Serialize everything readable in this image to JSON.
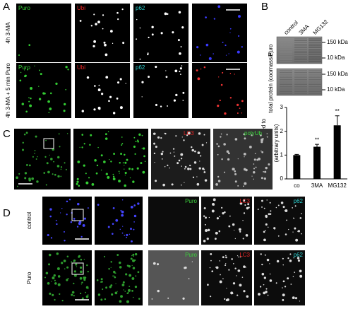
{
  "panel_labels": [
    "A",
    "B",
    "C",
    "D"
  ],
  "panel_a": {
    "rows": [
      {
        "label": "4h 3-MA",
        "channels": [
          "Puro",
          "Ubi",
          "p62"
        ]
      },
      {
        "label": "4h 3-MA + 5 min Puro",
        "channels": [
          "Puro",
          "Ubi",
          "p62"
        ]
      }
    ]
  },
  "panel_b": {
    "lanes": [
      "control",
      "3MA",
      "MG132"
    ],
    "blots": [
      {
        "label": "Puro",
        "markers": [
          "150 kDa",
          "10 kDa"
        ]
      },
      {
        "label": "total protein (coomassie)",
        "markers": [
          "150 kDa",
          "10 kDa"
        ]
      }
    ]
  },
  "chart_data": {
    "type": "bar",
    "ylabel": [
      "Puro, normalized to",
      "total protein",
      "(arbitrary units)"
    ],
    "categories": [
      "co",
      "3MA",
      "MG132"
    ],
    "values": [
      1,
      1.35,
      2.25
    ],
    "errors": [
      0.03,
      0.1,
      0.4
    ],
    "annotations": [
      {
        "x": "3MA",
        "text": "**"
      },
      {
        "x": "MG132",
        "text": "**"
      }
    ],
    "color": "#000000",
    "ylim": [
      0,
      3
    ],
    "yticks": [
      0,
      1,
      2,
      3
    ]
  },
  "panel_c": {
    "channels": [
      "LC3",
      "polyUb"
    ]
  },
  "panel_d": {
    "rows": [
      {
        "label": "control",
        "channels": [
          "Puro",
          "LC3",
          "p62"
        ]
      },
      {
        "label": "Puro",
        "channels": [
          "Puro",
          "LC3",
          "p62"
        ]
      }
    ]
  }
}
